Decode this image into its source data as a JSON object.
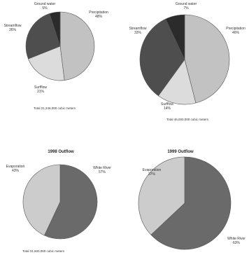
{
  "chart_data": [
    {
      "type": "pie",
      "title": "",
      "slices": [
        {
          "label": "Precipitation",
          "value_text": "48%",
          "value": 48,
          "color": "#c2c2c2"
        },
        {
          "label": "Surfflow",
          "value_text": "21%",
          "value": 21,
          "color": "#dcdcdc"
        },
        {
          "label": "Streamflow",
          "value_text": "26%",
          "value": 26,
          "color": "#4e4e4e"
        },
        {
          "label": "Ground water",
          "value_text": "5%",
          "value": 5,
          "color": "#2b2b2b"
        }
      ],
      "total": "Total    21,246,000 cubic meters"
    },
    {
      "type": "pie",
      "title": "",
      "slices": [
        {
          "label": "Precipitation",
          "value_text": "46%",
          "value": 46,
          "color": "#c2c2c2"
        },
        {
          "label": "Surfflow",
          "value_text": "14%",
          "value": 14,
          "color": "#dcdcdc"
        },
        {
          "label": "Streamflow",
          "value_text": "33%",
          "value": 33,
          "color": "#4e4e4e"
        },
        {
          "label": "Ground water",
          "value_text": "7%",
          "value": 7,
          "color": "#2b2b2b"
        }
      ],
      "total": "Total    46,000,000 cubic meters"
    },
    {
      "type": "pie",
      "title": "1998 Outflow",
      "slices": [
        {
          "label": "White River",
          "value_text": "57%",
          "value": 57,
          "color": "#6a6a6a"
        },
        {
          "label": "Evaporation",
          "value_text": "43%",
          "value": 43,
          "color": "#cccccc"
        }
      ],
      "total": "Total    31,600,000 cubic meters"
    },
    {
      "type": "pie",
      "title": "1999 Outflow",
      "slices": [
        {
          "label": "White River",
          "value_text": "63%",
          "value": 63,
          "color": "#6a6a6a"
        },
        {
          "label": "Evaporation",
          "value_text": "37%",
          "value": 37,
          "color": "#cccccc"
        }
      ],
      "total": ""
    }
  ]
}
